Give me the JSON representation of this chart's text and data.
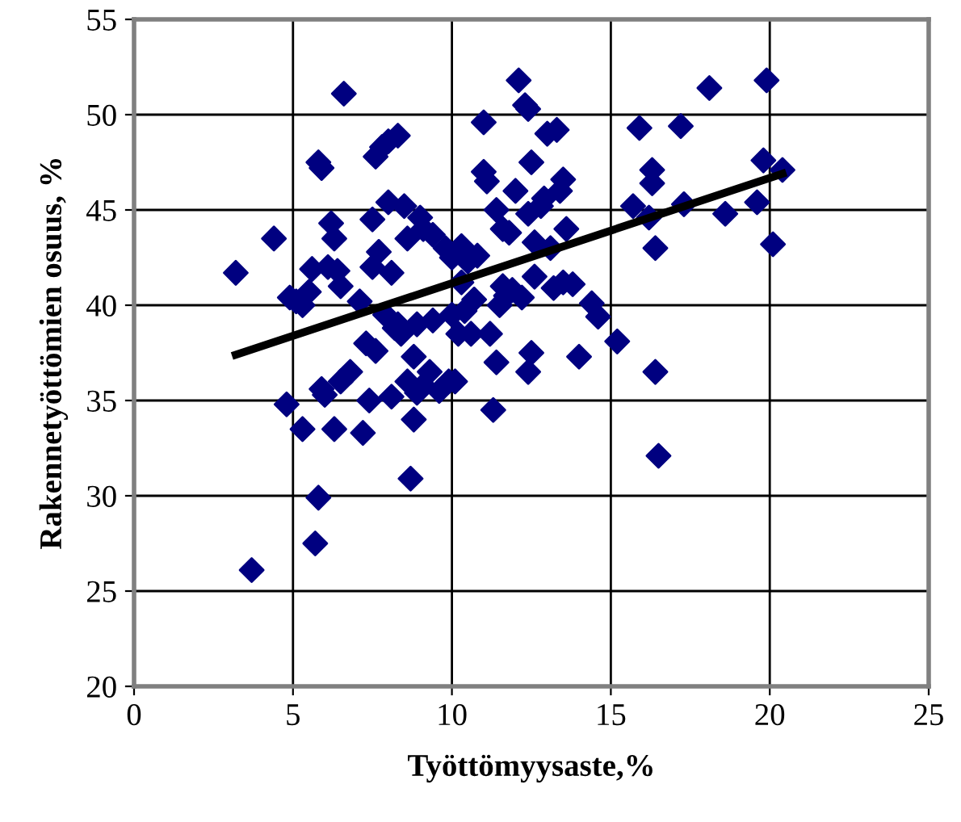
{
  "chart_data": {
    "type": "scatter",
    "xlabel": "Työttömyysaste,%",
    "ylabel": "Rakennetyöttömien osuus, %",
    "xlim": [
      0,
      25
    ],
    "ylim": [
      20,
      55
    ],
    "xticks": [
      0,
      5,
      10,
      15,
      20,
      25
    ],
    "yticks": [
      20,
      25,
      30,
      35,
      40,
      45,
      50,
      55
    ],
    "grid": true,
    "marker": "diamond",
    "series": [
      {
        "color": "#000080",
        "x": [
          3.2,
          3.7,
          4.4,
          4.8,
          4.9,
          5.1,
          5.3,
          5.3,
          5.5,
          5.6,
          5.7,
          5.8,
          5.8,
          5.9,
          5.9,
          6.0,
          6.1,
          6.2,
          6.3,
          6.3,
          6.4,
          6.5,
          6.5,
          6.6,
          6.8,
          7.1,
          7.2,
          7.3,
          7.4,
          7.5,
          7.5,
          7.6,
          7.6,
          7.7,
          7.8,
          7.9,
          8.0,
          8.0,
          8.1,
          8.1,
          8.2,
          8.3,
          8.3,
          8.4,
          8.5,
          8.6,
          8.6,
          8.7,
          8.8,
          8.8,
          8.9,
          8.9,
          9.0,
          9.1,
          9.1,
          9.3,
          9.4,
          9.4,
          9.6,
          9.8,
          9.9,
          10.0,
          10.0,
          10.1,
          10.2,
          10.3,
          10.3,
          10.4,
          10.5,
          10.6,
          10.7,
          10.8,
          11.0,
          11.0,
          11.1,
          11.2,
          11.3,
          11.4,
          11.4,
          11.5,
          11.6,
          11.6,
          11.7,
          11.8,
          11.9,
          12.0,
          12.1,
          12.2,
          12.3,
          12.4,
          12.4,
          12.4,
          12.5,
          12.5,
          12.6,
          12.6,
          12.8,
          12.9,
          13.0,
          13.1,
          13.2,
          13.3,
          13.4,
          13.5,
          13.5,
          13.6,
          13.8,
          14.0,
          14.4,
          14.6,
          15.2,
          15.7,
          15.9,
          16.2,
          16.3,
          16.3,
          16.4,
          16.4,
          16.5,
          17.2,
          17.3,
          18.1,
          18.6,
          19.6,
          19.8,
          19.9,
          20.1,
          20.4
        ],
        "values": [
          41.7,
          26.1,
          43.5,
          34.8,
          40.4,
          40.2,
          33.5,
          40.0,
          40.7,
          41.9,
          27.5,
          29.9,
          47.5,
          47.2,
          35.6,
          35.3,
          42.0,
          44.3,
          43.5,
          33.5,
          41.8,
          41.0,
          36.0,
          51.1,
          36.5,
          40.2,
          33.3,
          38.0,
          35.0,
          44.5,
          42.0,
          47.8,
          37.6,
          42.8,
          48.3,
          39.5,
          45.4,
          48.6,
          41.7,
          35.2,
          38.8,
          48.9,
          39.0,
          38.5,
          45.2,
          36.0,
          43.5,
          30.9,
          37.3,
          34.0,
          39.0,
          35.4,
          44.6,
          44.0,
          35.8,
          36.5,
          43.7,
          39.2,
          35.5,
          43.0,
          36.0,
          42.5,
          39.5,
          36.0,
          38.5,
          43.1,
          41.2,
          39.7,
          42.3,
          38.5,
          40.3,
          42.6,
          49.6,
          47.0,
          46.5,
          38.5,
          34.5,
          45.0,
          37.0,
          40.0,
          41.0,
          44.0,
          40.5,
          43.8,
          40.8,
          46.0,
          51.8,
          40.4,
          50.5,
          50.3,
          44.8,
          36.5,
          47.5,
          37.5,
          43.3,
          41.5,
          45.2,
          45.6,
          49.0,
          43.0,
          40.9,
          49.2,
          46.0,
          41.2,
          46.6,
          44.0,
          41.1,
          37.3,
          40.1,
          39.4,
          38.1,
          45.2,
          49.3,
          44.6,
          47.1,
          46.4,
          43.0,
          36.5,
          32.1,
          49.4,
          45.3,
          51.4,
          44.8,
          45.4,
          47.6,
          51.8,
          43.2,
          47.1
        ]
      },
      {
        "type": "line",
        "color": "#000000",
        "marker": "none",
        "line_style": "solid",
        "x": [
          3.2,
          20.4
        ],
        "values": [
          37.4,
          46.9
        ]
      }
    ]
  }
}
